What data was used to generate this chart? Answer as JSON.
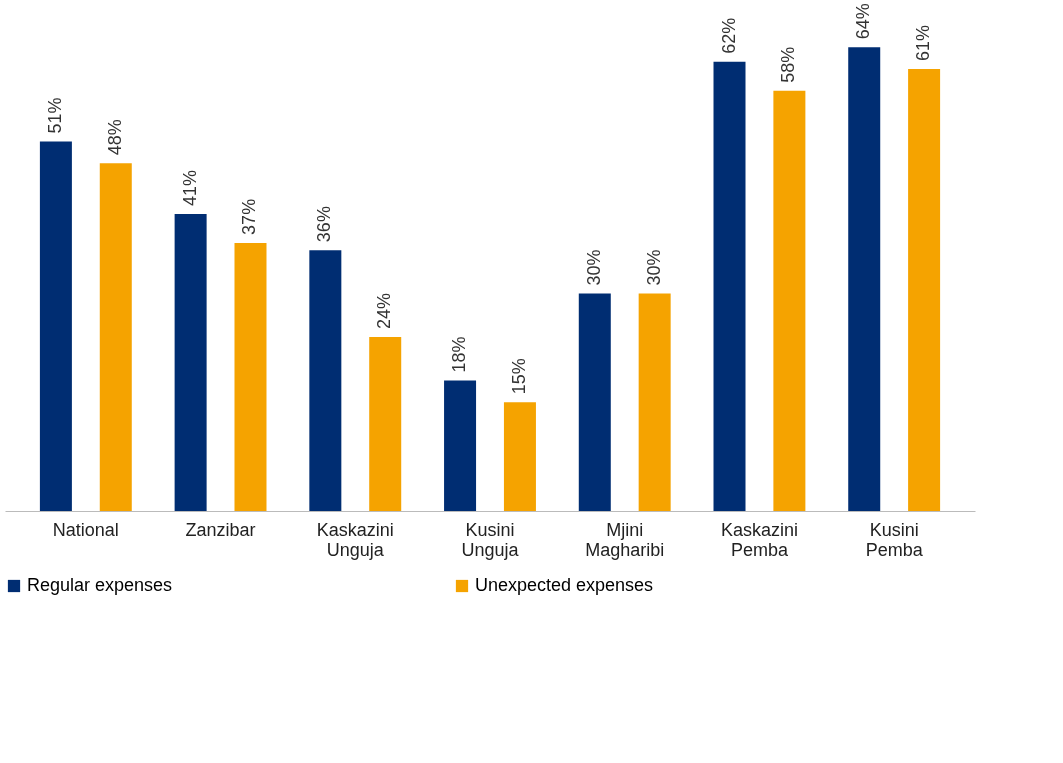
{
  "chart_data": {
    "type": "bar",
    "categories": [
      "National",
      "Zanzibar",
      "Kaskazini Unguja",
      "Kusini Unguja",
      "Mjini Magharibi",
      "Kaskazini Pemba",
      "Kusini Pemba"
    ],
    "series": [
      {
        "name": "Regular expenses",
        "color": "#002d72",
        "values": [
          51,
          41,
          36,
          18,
          30,
          62,
          64
        ],
        "value_labels": [
          "51%",
          "41%",
          "36%",
          "18%",
          "30%",
          "62%",
          "64%"
        ]
      },
      {
        "name": "Unexpected expenses",
        "color": "#f5a300",
        "values": [
          48,
          37,
          24,
          15,
          30,
          58,
          61
        ],
        "value_labels": [
          "48%",
          "37%",
          "24%",
          "15%",
          "30%",
          "58%",
          "61%"
        ]
      }
    ],
    "grid": false,
    "legend": "bottom"
  }
}
